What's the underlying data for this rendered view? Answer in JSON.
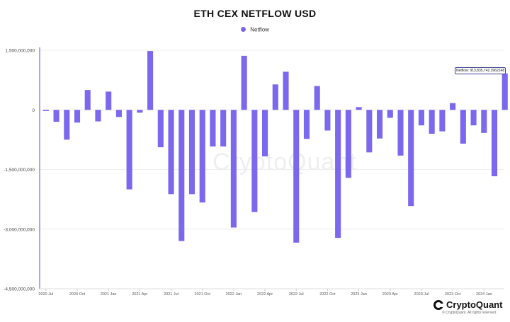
{
  "title": "ETH CEX NETFLOW USD",
  "legend": {
    "label": "Netflow",
    "color": "#7b68ee"
  },
  "watermark": "CryptoQuant",
  "brand": {
    "name": "CryptoQuant",
    "copyright": "© CryptoQuant. All rights reserved."
  },
  "tooltip": {
    "text": "Netflow: 913,835,742.3962248"
  },
  "chart_data": {
    "type": "bar",
    "title": "ETH CEX NETFLOW USD",
    "xlabel": "",
    "ylabel": "",
    "ylim": [
      -4500000000,
      1500000000
    ],
    "yticks": [
      {
        "value": 1500000000,
        "label": "1,500,000,000"
      },
      {
        "value": 0,
        "label": "0"
      },
      {
        "value": -1500000000,
        "label": "-1,500,000,000"
      },
      {
        "value": -3000000000,
        "label": "-3,000,000,000"
      },
      {
        "value": -4500000000,
        "label": "-4,500,000,000"
      }
    ],
    "xticks": [
      {
        "index": 0,
        "label": "2020 Jul"
      },
      {
        "index": 3,
        "label": "2020 Oct"
      },
      {
        "index": 6,
        "label": "2021 Jan"
      },
      {
        "index": 9,
        "label": "2021 Apr"
      },
      {
        "index": 12,
        "label": "2021 Jul"
      },
      {
        "index": 15,
        "label": "2021 Oct"
      },
      {
        "index": 18,
        "label": "2022 Jan"
      },
      {
        "index": 21,
        "label": "2022 Apr"
      },
      {
        "index": 24,
        "label": "2022 Jul"
      },
      {
        "index": 27,
        "label": "2022 Oct"
      },
      {
        "index": 30,
        "label": "2023 Jan"
      },
      {
        "index": 33,
        "label": "2023 Apr"
      },
      {
        "index": 36,
        "label": "2023 Jul"
      },
      {
        "index": 39,
        "label": "2023 Oct"
      },
      {
        "index": 42,
        "label": "2024 Jan"
      }
    ],
    "grid": true,
    "legend_position": "top-center",
    "series": [
      {
        "name": "Netflow",
        "color": "#7b68ee",
        "values": [
          -30000000,
          -300000000,
          -750000000,
          -320000000,
          500000000,
          -290000000,
          460000000,
          -180000000,
          -2000000000,
          -70000000,
          1480000000,
          -940000000,
          -2120000000,
          -3300000000,
          -2120000000,
          -2330000000,
          -920000000,
          -920000000,
          -2960000000,
          1360000000,
          -2570000000,
          -1170000000,
          640000000,
          960000000,
          -3340000000,
          -730000000,
          600000000,
          -520000000,
          -3220000000,
          -1710000000,
          70000000,
          -1070000000,
          -720000000,
          -200000000,
          -1150000000,
          -2420000000,
          -390000000,
          -600000000,
          -540000000,
          170000000,
          -850000000,
          -390000000,
          -580000000,
          -1670000000,
          913835742
        ]
      }
    ]
  }
}
